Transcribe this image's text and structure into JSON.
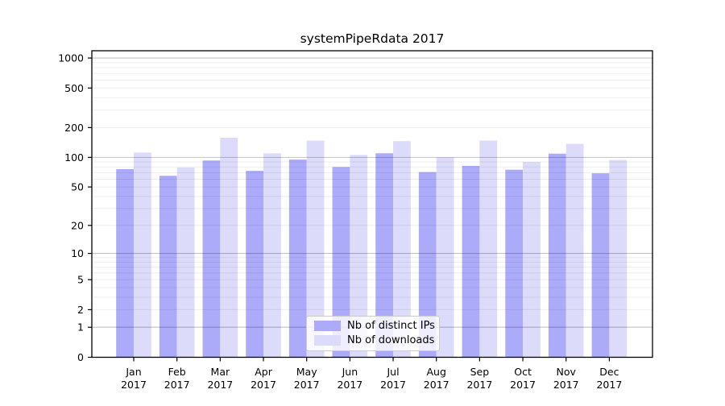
{
  "chart_data": {
    "type": "bar",
    "title": "systemPipeRdata 2017",
    "categories": [
      "Jan 2017",
      "Feb 2017",
      "Mar 2017",
      "Apr 2017",
      "May 2017",
      "Jun 2017",
      "Jul 2017",
      "Aug 2017",
      "Sep 2017",
      "Oct 2017",
      "Nov 2017",
      "Dec 2017"
    ],
    "series": [
      {
        "name": "Nb of distinct IPs",
        "color": "#ababfa",
        "values": [
          76,
          65,
          93,
          73,
          95,
          80,
          110,
          71,
          82,
          75,
          109,
          69
        ]
      },
      {
        "name": "Nb of downloads",
        "color": "#dcdcfa",
        "values": [
          112,
          79,
          158,
          110,
          148,
          106,
          146,
          100,
          148,
          90,
          137,
          94
        ]
      }
    ],
    "xlabel": "",
    "ylabel": "",
    "yscale": "log1p",
    "yticks": [
      0,
      1,
      2,
      5,
      10,
      20,
      50,
      100,
      200,
      500,
      1000
    ],
    "ylim": [
      0,
      1190
    ],
    "grid": {
      "on": true,
      "major_lines": [
        1,
        10,
        100,
        1000
      ],
      "major_color": "#c6c6c6",
      "minor_color": "#ececec"
    },
    "legend": {
      "position": "lower-center",
      "entries": [
        "Nb of distinct IPs",
        "Nb of downloads"
      ]
    },
    "colors": {
      "background": "#ffffff",
      "axis": "#000000",
      "bar_dark": "#ababfa",
      "bar_light": "#dcdcfa"
    }
  }
}
